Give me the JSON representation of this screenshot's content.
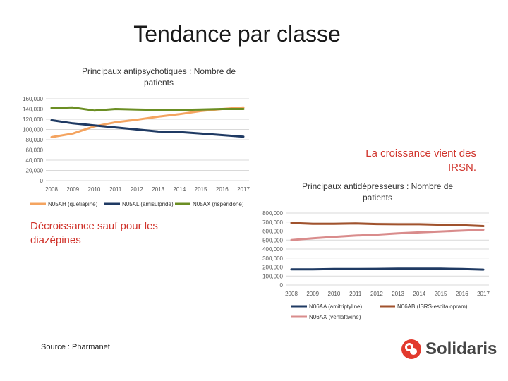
{
  "slide": {
    "title": "Tendance par classe",
    "note_right": "La croissance vient des IRSN.",
    "note_left": "Décroissance sauf pour les diazépines",
    "source": "Source : Pharmanet",
    "logo_text": "Solidaris",
    "note_color": "#d0332b"
  },
  "chart_data": [
    {
      "type": "line",
      "title": "Principaux antipsychotiques : Nombre de patients",
      "x": [
        "2008",
        "2009",
        "2010",
        "2011",
        "2012",
        "2013",
        "2014",
        "2015",
        "2016",
        "2017"
      ],
      "ylim": [
        0,
        160000
      ],
      "yticks": [
        "0",
        "20,000",
        "40,000",
        "60,000",
        "80,000",
        "100,000",
        "120,000",
        "140,000",
        "160,000"
      ],
      "grid": true,
      "legend_position": "bottom",
      "series": [
        {
          "name": "N05AH (quétiapine)",
          "color": "#f4a460",
          "values": [
            85000,
            92000,
            106000,
            114000,
            119000,
            125000,
            130000,
            136000,
            140000,
            143000
          ]
        },
        {
          "name": "N05AL (amisulpride)",
          "color": "#1f3a63",
          "values": [
            118000,
            112000,
            108000,
            104000,
            100000,
            96000,
            95000,
            92000,
            89000,
            86000
          ]
        },
        {
          "name": "N05AX (rispéridone)",
          "color": "#6b8e23",
          "values": [
            142000,
            143000,
            137000,
            140000,
            139000,
            138000,
            138000,
            139000,
            140000,
            140000
          ]
        }
      ]
    },
    {
      "type": "line",
      "title": "Principaux antidépresseurs : Nombre de patients",
      "x": [
        "2008",
        "2009",
        "2010",
        "2011",
        "2012",
        "2013",
        "2014",
        "2015",
        "2016",
        "2017"
      ],
      "ylim": [
        0,
        800000
      ],
      "yticks": [
        "0",
        "100,000",
        "200,000",
        "300,000",
        "400,000",
        "500,000",
        "600,000",
        "700,000",
        "800,000"
      ],
      "grid": true,
      "legend_position": "bottom",
      "series": [
        {
          "name": "N06AA (amitriptyline)",
          "color": "#1f3a63",
          "values": [
            175000,
            175000,
            178000,
            178000,
            180000,
            182000,
            182000,
            182000,
            178000,
            172000
          ]
        },
        {
          "name": "N06AB (ISRS-escitalopram)",
          "color": "#a0522d",
          "values": [
            690000,
            680000,
            680000,
            685000,
            678000,
            675000,
            675000,
            670000,
            665000,
            655000
          ]
        },
        {
          "name": "N06AX (venlafaxine)",
          "color": "#d98c8c",
          "values": [
            500000,
            520000,
            535000,
            550000,
            560000,
            575000,
            585000,
            595000,
            605000,
            615000
          ]
        }
      ]
    }
  ]
}
